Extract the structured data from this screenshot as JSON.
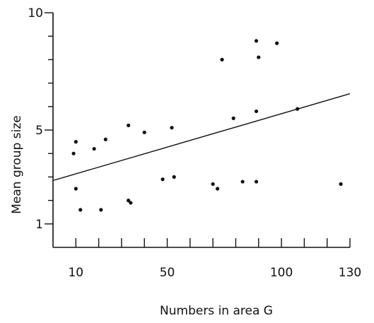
{
  "chart_data": {
    "type": "scatter",
    "xlabel": "Numbers in area G",
    "ylabel": "Mean group size",
    "xlim": [
      0,
      130
    ],
    "ylim": [
      0,
      10
    ],
    "x_ticks": [
      10,
      50,
      100,
      130
    ],
    "x_minor_step": 10,
    "y_ticks": [
      1,
      5,
      10
    ],
    "y_minor_step": 1,
    "points": [
      {
        "x": 9,
        "y": 4.0
      },
      {
        "x": 10,
        "y": 4.5
      },
      {
        "x": 10,
        "y": 2.5
      },
      {
        "x": 12,
        "y": 1.6
      },
      {
        "x": 18,
        "y": 4.2
      },
      {
        "x": 21,
        "y": 1.6
      },
      {
        "x": 23,
        "y": 4.6
      },
      {
        "x": 33,
        "y": 5.2
      },
      {
        "x": 33,
        "y": 2.0
      },
      {
        "x": 34,
        "y": 1.9
      },
      {
        "x": 40,
        "y": 4.9
      },
      {
        "x": 48,
        "y": 2.9
      },
      {
        "x": 52,
        "y": 5.1
      },
      {
        "x": 53,
        "y": 3.0
      },
      {
        "x": 70,
        "y": 2.7
      },
      {
        "x": 72,
        "y": 2.5
      },
      {
        "x": 74,
        "y": 8.0
      },
      {
        "x": 79,
        "y": 5.5
      },
      {
        "x": 83,
        "y": 2.8
      },
      {
        "x": 89,
        "y": 8.8
      },
      {
        "x": 89,
        "y": 5.8
      },
      {
        "x": 89,
        "y": 2.8
      },
      {
        "x": 90,
        "y": 8.1
      },
      {
        "x": 98,
        "y": 8.7
      },
      {
        "x": 107,
        "y": 5.9
      },
      {
        "x": 126,
        "y": 2.7
      }
    ],
    "trendline": {
      "x": [
        0,
        130
      ],
      "y": [
        2.85,
        6.55
      ]
    }
  }
}
